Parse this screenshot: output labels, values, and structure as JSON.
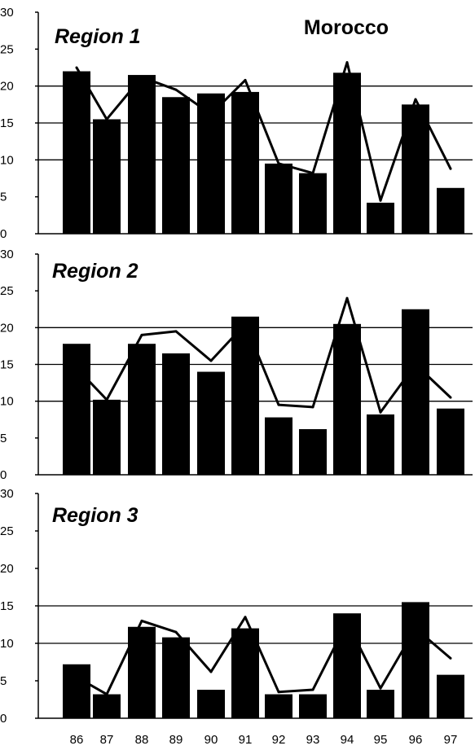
{
  "title": "Morocco",
  "chart_data": [
    {
      "type": "bar",
      "title": "Region 1",
      "categories": [
        "86",
        "87",
        "88",
        "89",
        "90",
        "91",
        "92",
        "93",
        "94",
        "95",
        "96",
        "97"
      ],
      "series": [
        {
          "type": "bar",
          "values": [
            22,
            15.5,
            21.5,
            18.5,
            19,
            19.2,
            9.5,
            8.2,
            21.8,
            4.2,
            17.5,
            6.2
          ]
        },
        {
          "type": "line",
          "values": [
            22.5,
            15.5,
            21.2,
            19.5,
            16.2,
            20.8,
            9.5,
            8.2,
            23.2,
            4.5,
            18.2,
            8.8
          ]
        }
      ],
      "ylim": [
        0,
        30
      ],
      "yticks": [
        "0",
        "5",
        "10",
        "15",
        "20",
        "25",
        "30"
      ],
      "grid_y": [
        10,
        15,
        20
      ]
    },
    {
      "type": "bar",
      "title": "Region  2",
      "categories": [
        "86",
        "87",
        "88",
        "89",
        "90",
        "91",
        "92",
        "93",
        "94",
        "95",
        "96",
        "97"
      ],
      "series": [
        {
          "type": "bar",
          "values": [
            17.8,
            10.2,
            17.8,
            16.5,
            14,
            21.5,
            7.8,
            6.2,
            20.5,
            8.2,
            22.5,
            9
          ]
        },
        {
          "type": "line",
          "values": [
            14.5,
            10.2,
            19,
            19.5,
            15.5,
            20.5,
            9.5,
            9.2,
            24,
            8.5,
            15,
            10.5
          ]
        }
      ],
      "ylim": [
        0,
        30
      ],
      "yticks": [
        "0",
        "5",
        "10",
        "15",
        "20",
        "25",
        "30"
      ],
      "grid_y": [
        10,
        15,
        20
      ]
    },
    {
      "type": "bar",
      "title": "Region  3",
      "categories": [
        "86",
        "87",
        "88",
        "89",
        "90",
        "91",
        "92",
        "93",
        "94",
        "95",
        "96",
        "97"
      ],
      "series": [
        {
          "type": "bar",
          "values": [
            7.2,
            3.2,
            12.2,
            10.8,
            3.8,
            12,
            3.2,
            3.2,
            14,
            3.8,
            15.5,
            5.8
          ]
        },
        {
          "type": "line",
          "values": [
            5.5,
            3.2,
            13,
            11.5,
            6.2,
            13.5,
            3.5,
            3.8,
            12.8,
            4,
            12,
            8
          ]
        }
      ],
      "ylim": [
        0,
        30
      ],
      "yticks": [
        "0",
        "5",
        "10",
        "15",
        "20",
        "25",
        "30"
      ],
      "grid_y": [
        10,
        15
      ]
    }
  ]
}
